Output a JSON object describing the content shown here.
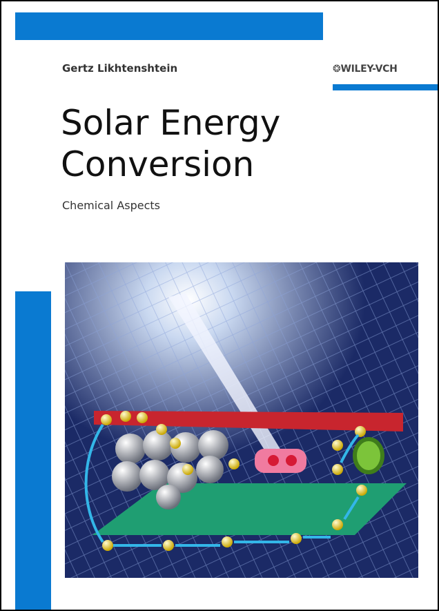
{
  "cover": {
    "author": "Gertz Likhtenshtein",
    "publisher": "WILEY-VCH",
    "title_lines": [
      "Solar Energy",
      "Conversion"
    ],
    "subtitle": "Chemical Aspects"
  }
}
